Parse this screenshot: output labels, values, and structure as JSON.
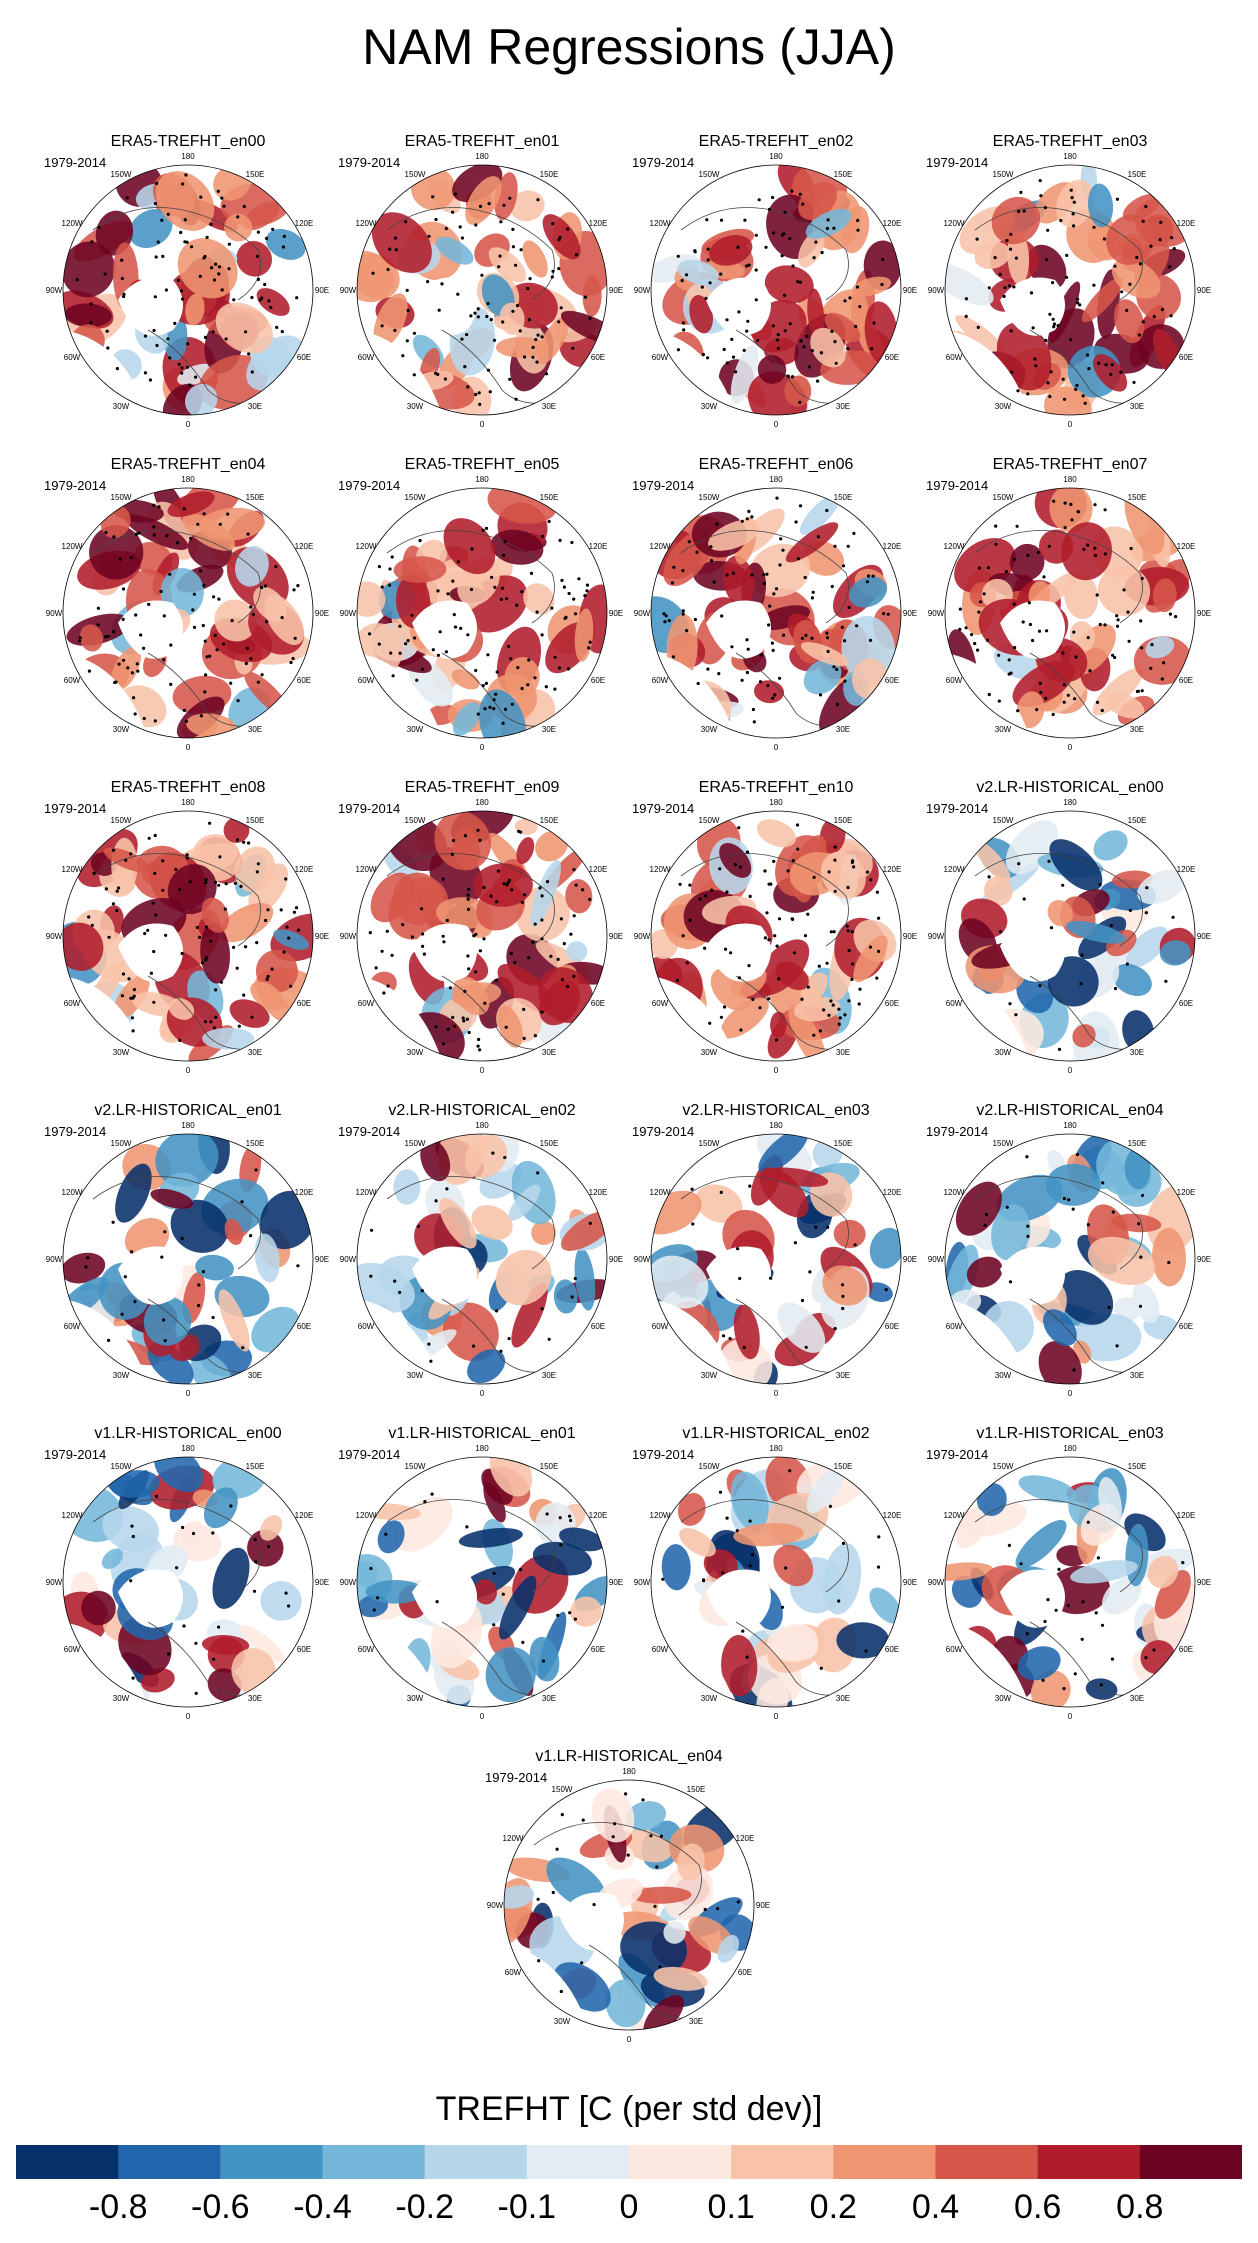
{
  "title": "NAM Regressions (JJA)",
  "chart_data": {
    "type": "polar-stereographic contour map panels",
    "variable": "TREFHT",
    "season": "JJA",
    "panels": [
      {
        "title": "ERA5-TREFHT_en00",
        "period": "1979-2014"
      },
      {
        "title": "ERA5-TREFHT_en01",
        "period": "1979-2014"
      },
      {
        "title": "ERA5-TREFHT_en02",
        "period": "1979-2014"
      },
      {
        "title": "ERA5-TREFHT_en03",
        "period": "1979-2014"
      },
      {
        "title": "ERA5-TREFHT_en04",
        "period": "1979-2014"
      },
      {
        "title": "ERA5-TREFHT_en05",
        "period": "1979-2014"
      },
      {
        "title": "ERA5-TREFHT_en06",
        "period": "1979-2014"
      },
      {
        "title": "ERA5-TREFHT_en07",
        "period": "1979-2014"
      },
      {
        "title": "ERA5-TREFHT_en08",
        "period": "1979-2014"
      },
      {
        "title": "ERA5-TREFHT_en09",
        "period": "1979-2014"
      },
      {
        "title": "ERA5-TREFHT_en10",
        "period": "1979-2014"
      },
      {
        "title": "v2.LR-HISTORICAL_en00",
        "period": "1979-2014"
      },
      {
        "title": "v2.LR-HISTORICAL_en01",
        "period": "1979-2014"
      },
      {
        "title": "v2.LR-HISTORICAL_en02",
        "period": "1979-2014"
      },
      {
        "title": "v2.LR-HISTORICAL_en03",
        "period": "1979-2014"
      },
      {
        "title": "v2.LR-HISTORICAL_en04",
        "period": "1979-2014"
      },
      {
        "title": "v1.LR-HISTORICAL_en00",
        "period": "1979-2014"
      },
      {
        "title": "v1.LR-HISTORICAL_en01",
        "period": "1979-2014"
      },
      {
        "title": "v1.LR-HISTORICAL_en02",
        "period": "1979-2014"
      },
      {
        "title": "v1.LR-HISTORICAL_en03",
        "period": "1979-2014"
      },
      {
        "title": "v1.LR-HISTORICAL_en04",
        "period": "1979-2014"
      }
    ],
    "longitude_labels": [
      "180",
      "150E",
      "120E",
      "90E",
      "60E",
      "30E",
      "0",
      "30W",
      "60W",
      "90W",
      "120W",
      "150W"
    ],
    "colorbar": {
      "title": "TREFHT [C (per std dev)]",
      "tick_labels": [
        "-0.8",
        "-0.6",
        "-0.4",
        "-0.2",
        "-0.1",
        "0",
        "0.1",
        "0.2",
        "0.4",
        "0.6",
        "0.8"
      ],
      "colors": [
        "#08306b",
        "#2166ac",
        "#4393c3",
        "#74b7da",
        "#b6d6ea",
        "#e3ecf3",
        "#fde8e0",
        "#f8c3a9",
        "#ef9572",
        "#d6574a",
        "#b11c2b",
        "#6d0322"
      ]
    }
  }
}
